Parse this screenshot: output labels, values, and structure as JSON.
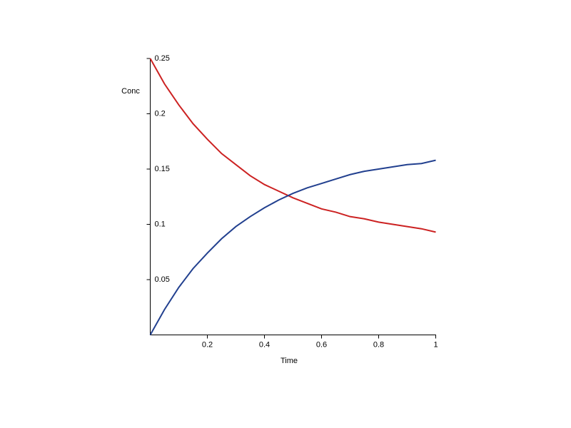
{
  "chart_data": {
    "type": "line",
    "x_label": "Time",
    "y_label": "Conc",
    "x": [
      0,
      0.05,
      0.1,
      0.15,
      0.2,
      0.25,
      0.3,
      0.35,
      0.4,
      0.45,
      0.5,
      0.55,
      0.6,
      0.65,
      0.7,
      0.75,
      0.8,
      0.85,
      0.9,
      0.95,
      1
    ],
    "series": [
      {
        "color": "#cc2222",
        "values": [
          0.25,
          0.227,
          0.208,
          0.191,
          0.177,
          0.164,
          0.154,
          0.144,
          0.136,
          0.13,
          0.124,
          0.119,
          0.114,
          0.111,
          0.107,
          0.105,
          0.102,
          0.1,
          0.098,
          0.096,
          0.093
        ]
      },
      {
        "color": "#22408f",
        "values": [
          0,
          0.023,
          0.043,
          0.06,
          0.074,
          0.087,
          0.098,
          0.107,
          0.115,
          0.122,
          0.128,
          0.133,
          0.137,
          0.141,
          0.145,
          0.148,
          0.15,
          0.152,
          0.154,
          0.155,
          0.158
        ]
      }
    ],
    "xlim": [
      0,
      1
    ],
    "xticks": [
      0.2,
      0.4,
      0.6,
      0.8,
      1
    ],
    "ylim": [
      0,
      0.25
    ],
    "yticks": [
      0.05,
      0.1,
      0.15,
      0.2,
      0.25
    ]
  }
}
